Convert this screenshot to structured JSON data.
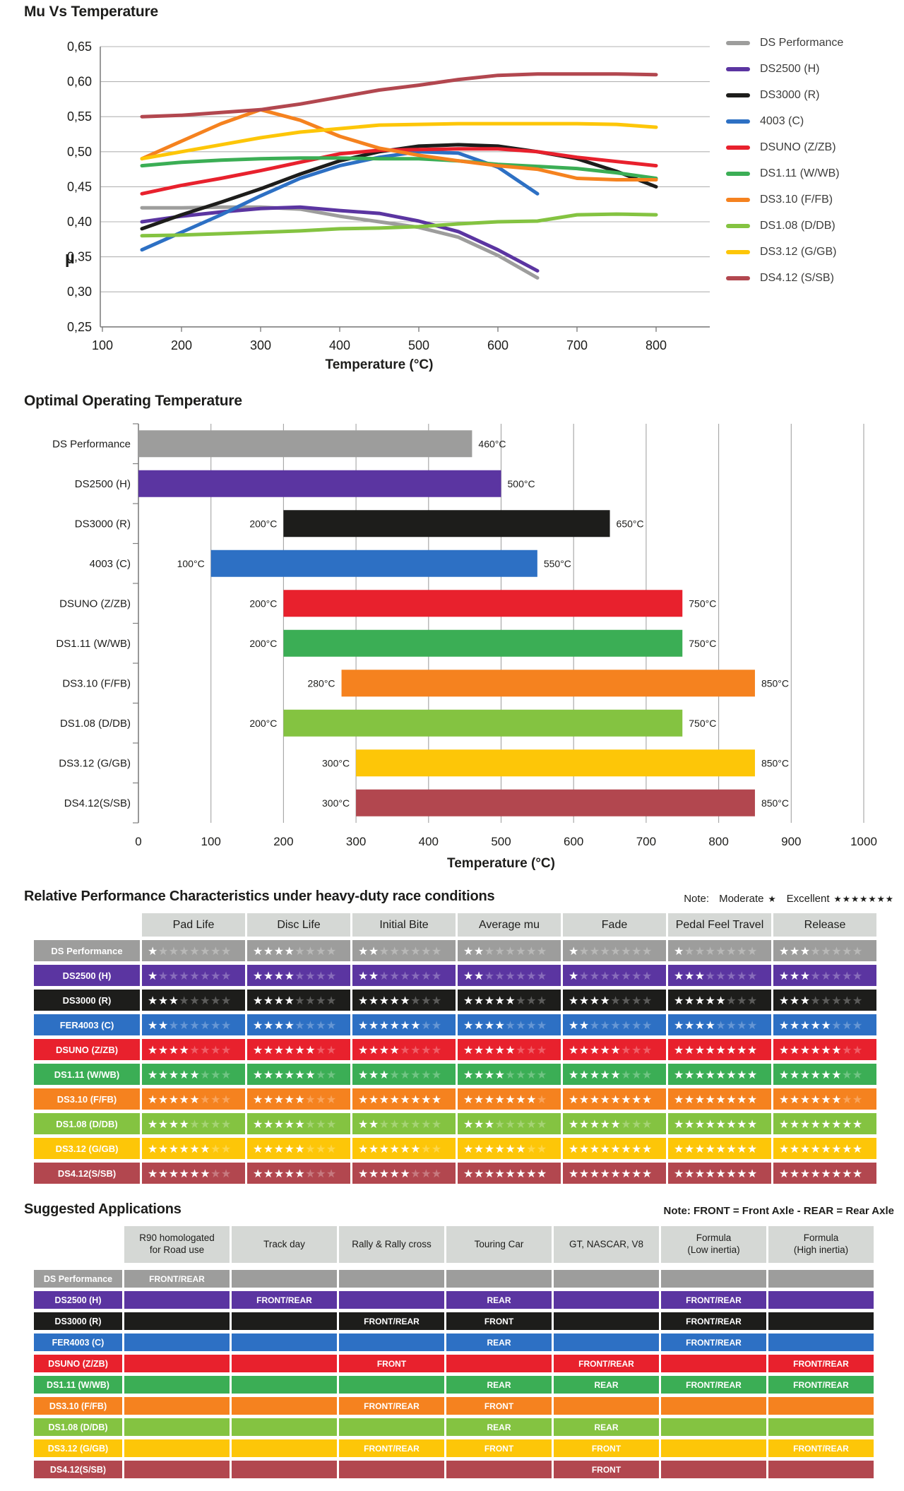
{
  "chart_data": [
    {
      "type": "line",
      "title": "Mu Vs Temperature",
      "xlabel": "Temperature (°C)",
      "ylabel": "µ",
      "xlim": [
        100,
        890
      ],
      "ylim": [
        0.25,
        0.65
      ],
      "xticks": [
        100,
        200,
        300,
        400,
        500,
        600,
        700,
        800
      ],
      "yticks": [
        0.65,
        0.6,
        0.55,
        0.5,
        0.45,
        0.4,
        0.35,
        0.3,
        0.25
      ],
      "ytick_labels": [
        "0,65",
        "0,60",
        "0,55",
        "0,50",
        "0,45",
        "0,40",
        "0,35",
        "0,30",
        "0,25"
      ],
      "grid": "horizontal",
      "legend_position": "right",
      "series": [
        {
          "name": "DS Performance",
          "color": "#9d9d9c",
          "points": [
            [
              150,
              0.42
            ],
            [
              200,
              0.42
            ],
            [
              250,
              0.421
            ],
            [
              300,
              0.421
            ],
            [
              350,
              0.418
            ],
            [
              400,
              0.408
            ],
            [
              450,
              0.4
            ],
            [
              500,
              0.392
            ],
            [
              550,
              0.378
            ],
            [
              600,
              0.352
            ],
            [
              650,
              0.32
            ]
          ]
        },
        {
          "name": "DS2500 (H)",
          "color": "#5b35a1",
          "points": [
            [
              150,
              0.4
            ],
            [
              200,
              0.408
            ],
            [
              250,
              0.414
            ],
            [
              300,
              0.419
            ],
            [
              350,
              0.421
            ],
            [
              400,
              0.416
            ],
            [
              450,
              0.412
            ],
            [
              500,
              0.401
            ],
            [
              550,
              0.386
            ],
            [
              600,
              0.36
            ],
            [
              650,
              0.33
            ]
          ]
        },
        {
          "name": "DS3000 (R)",
          "color": "#1d1d1b",
          "points": [
            [
              150,
              0.39
            ],
            [
              200,
              0.41
            ],
            [
              250,
              0.428
            ],
            [
              300,
              0.447
            ],
            [
              350,
              0.468
            ],
            [
              400,
              0.487
            ],
            [
              450,
              0.5
            ],
            [
              500,
              0.508
            ],
            [
              550,
              0.51
            ],
            [
              600,
              0.508
            ],
            [
              650,
              0.5
            ],
            [
              700,
              0.49
            ],
            [
              750,
              0.472
            ],
            [
              800,
              0.45
            ]
          ]
        },
        {
          "name": "4003 (C)",
          "color": "#2d70c4",
          "points": [
            [
              150,
              0.36
            ],
            [
              200,
              0.385
            ],
            [
              250,
              0.41
            ],
            [
              300,
              0.437
            ],
            [
              350,
              0.462
            ],
            [
              400,
              0.48
            ],
            [
              450,
              0.492
            ],
            [
              500,
              0.5
            ],
            [
              550,
              0.498
            ],
            [
              600,
              0.478
            ],
            [
              650,
              0.44
            ]
          ]
        },
        {
          "name": "DSUNO (Z/ZB)",
          "color": "#e8212d",
          "points": [
            [
              150,
              0.44
            ],
            [
              200,
              0.452
            ],
            [
              250,
              0.462
            ],
            [
              300,
              0.473
            ],
            [
              350,
              0.485
            ],
            [
              400,
              0.497
            ],
            [
              450,
              0.502
            ],
            [
              500,
              0.503
            ],
            [
              550,
              0.504
            ],
            [
              600,
              0.504
            ],
            [
              650,
              0.5
            ],
            [
              700,
              0.492
            ],
            [
              750,
              0.486
            ],
            [
              800,
              0.48
            ]
          ]
        },
        {
          "name": "DS1.11 (W/WB)",
          "color": "#3bae55",
          "points": [
            [
              150,
              0.48
            ],
            [
              200,
              0.485
            ],
            [
              250,
              0.488
            ],
            [
              300,
              0.49
            ],
            [
              350,
              0.491
            ],
            [
              400,
              0.491
            ],
            [
              450,
              0.49
            ],
            [
              500,
              0.49
            ],
            [
              550,
              0.487
            ],
            [
              600,
              0.482
            ],
            [
              650,
              0.479
            ],
            [
              700,
              0.476
            ],
            [
              750,
              0.47
            ],
            [
              800,
              0.462
            ]
          ]
        },
        {
          "name": "DS3.10 (F/FB)",
          "color": "#f5821f",
          "points": [
            [
              150,
              0.49
            ],
            [
              200,
              0.515
            ],
            [
              250,
              0.54
            ],
            [
              300,
              0.56
            ],
            [
              350,
              0.545
            ],
            [
              400,
              0.522
            ],
            [
              450,
              0.505
            ],
            [
              500,
              0.495
            ],
            [
              550,
              0.487
            ],
            [
              600,
              0.48
            ],
            [
              650,
              0.475
            ],
            [
              700,
              0.462
            ],
            [
              750,
              0.46
            ],
            [
              800,
              0.46
            ]
          ]
        },
        {
          "name": "DS1.08 (D/DB)",
          "color": "#84c341",
          "points": [
            [
              150,
              0.38
            ],
            [
              200,
              0.381
            ],
            [
              250,
              0.383
            ],
            [
              300,
              0.385
            ],
            [
              350,
              0.387
            ],
            [
              400,
              0.39
            ],
            [
              450,
              0.391
            ],
            [
              500,
              0.393
            ],
            [
              550,
              0.397
            ],
            [
              600,
              0.4
            ],
            [
              650,
              0.401
            ],
            [
              700,
              0.41
            ],
            [
              750,
              0.411
            ],
            [
              800,
              0.41
            ]
          ]
        },
        {
          "name": "DS3.12 (G/GB)",
          "color": "#fdc608",
          "points": [
            [
              150,
              0.49
            ],
            [
              200,
              0.5
            ],
            [
              250,
              0.51
            ],
            [
              300,
              0.52
            ],
            [
              350,
              0.528
            ],
            [
              400,
              0.533
            ],
            [
              450,
              0.538
            ],
            [
              500,
              0.539
            ],
            [
              550,
              0.54
            ],
            [
              600,
              0.54
            ],
            [
              650,
              0.54
            ],
            [
              700,
              0.54
            ],
            [
              750,
              0.539
            ],
            [
              800,
              0.535
            ]
          ]
        },
        {
          "name": "DS4.12 (S/SB)",
          "color": "#b2474f",
          "points": [
            [
              150,
              0.55
            ],
            [
              200,
              0.552
            ],
            [
              250,
              0.556
            ],
            [
              300,
              0.56
            ],
            [
              350,
              0.568
            ],
            [
              400,
              0.578
            ],
            [
              450,
              0.588
            ],
            [
              500,
              0.595
            ],
            [
              550,
              0.603
            ],
            [
              600,
              0.609
            ],
            [
              650,
              0.611
            ],
            [
              700,
              0.611
            ],
            [
              750,
              0.611
            ],
            [
              800,
              0.61
            ]
          ]
        }
      ]
    },
    {
      "type": "bar",
      "subtype": "horizontal-range",
      "title": "Optimal Operating Temperature",
      "xlabel": "Temperature (°C)",
      "xlim": [
        0,
        1000
      ],
      "xticks": [
        0,
        100,
        200,
        300,
        400,
        500,
        600,
        700,
        800,
        900,
        1000
      ],
      "grid": "vertical",
      "bars": [
        {
          "label": "DS Performance",
          "color": "#9d9d9c",
          "start": 0,
          "end": 460,
          "start_label": "",
          "end_label": "460°C"
        },
        {
          "label": "DS2500 (H)",
          "color": "#5b35a1",
          "start": 0,
          "end": 500,
          "start_label": "",
          "end_label": "500°C"
        },
        {
          "label": "DS3000 (R)",
          "color": "#1d1d1b",
          "start": 200,
          "end": 650,
          "start_label": "200°C",
          "end_label": "650°C"
        },
        {
          "label": "4003 (C)",
          "color": "#2d70c4",
          "start": 100,
          "end": 550,
          "start_label": "100°C",
          "end_label": "550°C"
        },
        {
          "label": "DSUNO (Z/ZB)",
          "color": "#e8212d",
          "start": 200,
          "end": 750,
          "start_label": "200°C",
          "end_label": "750°C"
        },
        {
          "label": "DS1.11 (W/WB)",
          "color": "#3bae55",
          "start": 200,
          "end": 750,
          "start_label": "200°C",
          "end_label": "750°C"
        },
        {
          "label": "DS3.10 (F/FB)",
          "color": "#f5821f",
          "start": 280,
          "end": 850,
          "start_label": "280°C",
          "end_label": "850°C"
        },
        {
          "label": "DS1.08 (D/DB)",
          "color": "#84c341",
          "start": 200,
          "end": 750,
          "start_label": "200°C",
          "end_label": "750°C"
        },
        {
          "label": "DS3.12 (G/GB)",
          "color": "#fdc608",
          "start": 300,
          "end": 850,
          "start_label": "300°C",
          "end_label": "850°C"
        },
        {
          "label": "DS4.12(S/SB)",
          "color": "#b2474f",
          "start": 300,
          "end": 850,
          "start_label": "300°C",
          "end_label": "850°C"
        }
      ]
    }
  ],
  "ratings_table": {
    "title": "Relative Performance Characteristics under heavy-duty race conditions",
    "note": {
      "label": "Note:",
      "moderate_label": "Moderate",
      "moderate_stars": "★",
      "excellent_label": "Excellent",
      "excellent_stars": "★★★★★★★"
    },
    "columns": [
      "Pad Life",
      "Disc Life",
      "Initial Bite",
      "Average mu",
      "Fade",
      "Pedal Feel Travel",
      "Release"
    ],
    "max_stars": 8,
    "rows": [
      {
        "label": "DS Performance",
        "color": "#9d9d9c",
        "values": [
          1,
          4,
          2,
          2,
          1,
          1,
          3
        ]
      },
      {
        "label": "DS2500 (H)",
        "color": "#5b35a1",
        "values": [
          1,
          4,
          2,
          2,
          1,
          3,
          3
        ]
      },
      {
        "label": "DS3000 (R)",
        "color": "#1d1d1b",
        "values": [
          3,
          4,
          5,
          5,
          4,
          5,
          3
        ]
      },
      {
        "label": "FER4003 (C)",
        "color": "#2d70c4",
        "values": [
          2,
          4,
          6,
          4,
          2,
          4,
          5
        ]
      },
      {
        "label": "DSUNO (Z/ZB)",
        "color": "#e8212d",
        "values": [
          4,
          6,
          4,
          5,
          5,
          8,
          6
        ]
      },
      {
        "label": "DS1.11 (W/WB)",
        "color": "#3bae55",
        "values": [
          5,
          6,
          3,
          4,
          5,
          8,
          6
        ]
      },
      {
        "label": "DS3.10 (F/FB)",
        "color": "#f5821f",
        "values": [
          5,
          5,
          8,
          7,
          8,
          8,
          6
        ]
      },
      {
        "label": "DS1.08 (D/DB)",
        "color": "#84c341",
        "values": [
          4,
          5,
          2,
          3,
          5,
          8,
          8
        ]
      },
      {
        "label": "DS3.12 (G/GB)",
        "color": "#fdc608",
        "values": [
          6,
          5,
          6,
          6,
          8,
          8,
          8
        ]
      },
      {
        "label": "DS4.12(S/SB)",
        "color": "#b2474f",
        "values": [
          6,
          5,
          5,
          8,
          8,
          8,
          8
        ]
      }
    ]
  },
  "applications_table": {
    "title": "Suggested Applications",
    "note": "Note: FRONT = Front Axle - REAR = Rear Axle",
    "columns": [
      "R90 homologated\nfor Road use",
      "Track day",
      "Rally & Rally cross",
      "Touring Car",
      "GT, NASCAR, V8",
      "Formula\n(Low inertia)",
      "Formula\n(High inertia)"
    ],
    "rows": [
      {
        "label": "DS Performance",
        "color": "#9d9d9c",
        "cells": [
          "FRONT/REAR",
          "",
          "",
          "",
          "",
          "",
          ""
        ]
      },
      {
        "label": "DS2500 (H)",
        "color": "#5b35a1",
        "cells": [
          "",
          "FRONT/REAR",
          "",
          "REAR",
          "",
          "FRONT/REAR",
          ""
        ]
      },
      {
        "label": "DS3000 (R)",
        "color": "#1d1d1b",
        "cells": [
          "",
          "",
          "FRONT/REAR",
          "FRONT",
          "",
          "FRONT/REAR",
          ""
        ]
      },
      {
        "label": "FER4003 (C)",
        "color": "#2d70c4",
        "cells": [
          "",
          "",
          "",
          "REAR",
          "",
          "FRONT/REAR",
          ""
        ]
      },
      {
        "label": "DSUNO (Z/ZB)",
        "color": "#e8212d",
        "cells": [
          "",
          "",
          "FRONT",
          "",
          "FRONT/REAR",
          "",
          "FRONT/REAR"
        ]
      },
      {
        "label": "DS1.11 (W/WB)",
        "color": "#3bae55",
        "cells": [
          "",
          "",
          "",
          "REAR",
          "REAR",
          "FRONT/REAR",
          "FRONT/REAR"
        ]
      },
      {
        "label": "DS3.10 (F/FB)",
        "color": "#f5821f",
        "cells": [
          "",
          "",
          "FRONT/REAR",
          "FRONT",
          "",
          "",
          ""
        ]
      },
      {
        "label": "DS1.08 (D/DB)",
        "color": "#84c341",
        "cells": [
          "",
          "",
          "",
          "REAR",
          "REAR",
          "",
          ""
        ]
      },
      {
        "label": "DS3.12 (G/GB)",
        "color": "#fdc608",
        "cells": [
          "",
          "",
          "FRONT/REAR",
          "FRONT",
          "FRONT",
          "",
          "FRONT/REAR"
        ]
      },
      {
        "label": "DS4.12(S/SB)",
        "color": "#b2474f",
        "cells": [
          "",
          "",
          "",
          "",
          "FRONT",
          "",
          ""
        ]
      }
    ]
  }
}
